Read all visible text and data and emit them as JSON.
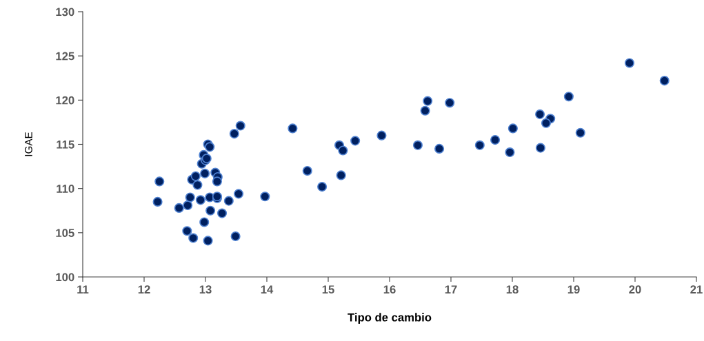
{
  "chart_data": {
    "type": "scatter",
    "xlabel": "Tipo de cambio",
    "ylabel": "IGAE",
    "xlim": [
      11,
      21
    ],
    "xticks": [
      11,
      12,
      13,
      14,
      15,
      16,
      17,
      18,
      19,
      20,
      21
    ],
    "ylim": [
      100,
      130
    ],
    "yticks": [
      100,
      105,
      110,
      115,
      120,
      125,
      130
    ],
    "grid": false,
    "legend": false,
    "marker": "circle",
    "series": [
      {
        "color": "#002060",
        "x": [
          12.22,
          12.25,
          12.57,
          12.71,
          12.7,
          12.75,
          12.78,
          12.8,
          12.84,
          12.87,
          12.92,
          12.94,
          12.97,
          12.98,
          12.99,
          13.0,
          13.02,
          13.04,
          13.07,
          13.04,
          13.07,
          13.08,
          13.16,
          13.19,
          13.2,
          13.19,
          13.19,
          13.27,
          13.38,
          13.47,
          13.49,
          13.54,
          13.57,
          13.97,
          14.42,
          14.66,
          14.9,
          15.18,
          15.24,
          15.21,
          15.44,
          15.87,
          16.46,
          16.58,
          16.62,
          16.81,
          16.98,
          17.47,
          17.72,
          17.96,
          18.01,
          18.45,
          18.46,
          18.62,
          18.55,
          18.92,
          19.11,
          19.91,
          20.48
        ],
        "values": [
          108.5,
          110.8,
          107.8,
          108.1,
          105.2,
          109.0,
          111.0,
          104.4,
          111.4,
          110.4,
          108.7,
          112.8,
          113.8,
          106.2,
          111.7,
          113.2,
          113.4,
          115.0,
          114.7,
          104.1,
          109.0,
          107.5,
          111.8,
          108.9,
          111.3,
          110.8,
          109.1,
          107.2,
          108.6,
          116.2,
          104.6,
          109.4,
          117.1,
          109.1,
          116.8,
          112.0,
          110.2,
          114.9,
          114.3,
          111.5,
          115.4,
          116.0,
          114.9,
          118.8,
          119.9,
          114.5,
          119.7,
          114.9,
          115.5,
          114.1,
          116.8,
          118.4,
          114.6,
          117.9,
          117.4,
          120.4,
          116.3,
          124.2,
          122.2
        ]
      }
    ]
  }
}
